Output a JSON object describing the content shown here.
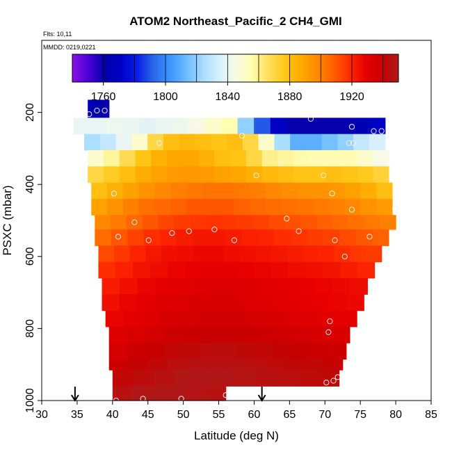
{
  "chart_data": {
    "type": "heatmap",
    "title": "ATOM2 Northeast_Pacific_2 CH4_GMI",
    "subtitle_flights": "Flts: 10,11",
    "subtitle_dates": "MMDD: 0219,0221",
    "xlabel": "Latitude (deg N)",
    "ylabel": "PSXC (mbar)",
    "xlim": [
      30,
      85
    ],
    "ylim": [
      1000,
      0
    ],
    "x_ticks": [
      "30",
      "35",
      "40",
      "45",
      "50",
      "55",
      "60",
      "65",
      "70",
      "75",
      "80",
      "85"
    ],
    "y_ticks": [
      "200",
      "400",
      "600",
      "800",
      "1000"
    ],
    "colorbar": {
      "range": [
        1740,
        1950
      ],
      "tick_values": [
        1760,
        1800,
        1840,
        1880,
        1920
      ],
      "tick_labels": [
        "1760",
        "1800",
        "1840",
        "1880",
        "1920"
      ],
      "colors": [
        "#8b10e6",
        "#4b00d6",
        "#0000a8",
        "#0000c8",
        "#0b1ee8",
        "#2a6ae8",
        "#3c95ff",
        "#6cbcff",
        "#a8dcff",
        "#d6f0ff",
        "#f8fae6",
        "#fffcb0",
        "#ffe060",
        "#ffc81a",
        "#ffaa00",
        "#ff8a00",
        "#ff6000",
        "#ff2a00",
        "#e80000",
        "#c80000",
        "#ad1c1c"
      ]
    },
    "arrows_at_latitude": [
      34.7,
      61.1
    ],
    "layers": [
      {
        "p_top": 165,
        "p_bot": 215,
        "lat_min": 36.5,
        "lat_max": 39.5,
        "values": [
          1765,
          1762,
          1760
        ]
      },
      {
        "p_top": 215,
        "p_bot": 260,
        "lat_min": 34.5,
        "lat_max": 78.5,
        "values": [
          1840,
          1840,
          1842,
          1840,
          1838,
          1840,
          1842,
          1845,
          1850,
          1855,
          1820,
          1790,
          1770,
          1760,
          1760,
          1760,
          1760,
          1765,
          1770
        ]
      },
      {
        "p_top": 260,
        "p_bot": 305,
        "lat_min": 36,
        "lat_max": 78.5,
        "values": [
          1825,
          1830,
          1840,
          1850,
          1870,
          1880,
          1882,
          1880,
          1878,
          1880,
          1870,
          1850,
          1825,
          1810,
          1810,
          1815,
          1820,
          1830,
          1835
        ]
      },
      {
        "p_top": 305,
        "p_bot": 350,
        "lat_min": 36.5,
        "lat_max": 79,
        "values": [
          1850,
          1858,
          1868,
          1878,
          1885,
          1888,
          1888,
          1885,
          1880,
          1878,
          1870,
          1860,
          1858,
          1856,
          1855,
          1855,
          1855,
          1850,
          1845
        ]
      },
      {
        "p_top": 350,
        "p_bot": 395,
        "lat_min": 36.5,
        "lat_max": 79,
        "values": [
          1870,
          1875,
          1880,
          1886,
          1890,
          1892,
          1893,
          1892,
          1890,
          1888,
          1885,
          1882,
          1880,
          1878,
          1878,
          1880,
          1878,
          1876,
          1872
        ]
      },
      {
        "p_top": 395,
        "p_bot": 440,
        "lat_min": 37,
        "lat_max": 79.5,
        "values": [
          1880,
          1885,
          1890,
          1895,
          1898,
          1900,
          1902,
          1903,
          1903,
          1902,
          1900,
          1898,
          1896,
          1895,
          1895,
          1893,
          1890,
          1886,
          1880
        ]
      },
      {
        "p_top": 440,
        "p_bot": 485,
        "lat_min": 37,
        "lat_max": 79.5,
        "values": [
          1890,
          1895,
          1900,
          1904,
          1906,
          1908,
          1910,
          1910,
          1910,
          1908,
          1906,
          1905,
          1904,
          1903,
          1902,
          1900,
          1898,
          1895,
          1892
        ]
      },
      {
        "p_top": 485,
        "p_bot": 525,
        "lat_min": 37.5,
        "lat_max": 80,
        "values": [
          1898,
          1902,
          1906,
          1910,
          1913,
          1915,
          1916,
          1917,
          1916,
          1915,
          1914,
          1912,
          1911,
          1910,
          1908,
          1906,
          1904,
          1902,
          1900
        ]
      },
      {
        "p_top": 525,
        "p_bot": 570,
        "lat_min": 37.5,
        "lat_max": 79,
        "values": [
          1905,
          1910,
          1914,
          1918,
          1920,
          1922,
          1923,
          1923,
          1922,
          1921,
          1920,
          1918,
          1917,
          1915,
          1914,
          1912,
          1910,
          1908
        ]
      },
      {
        "p_top": 570,
        "p_bot": 615,
        "lat_min": 38,
        "lat_max": 78,
        "values": [
          1912,
          1916,
          1920,
          1923,
          1925,
          1926,
          1927,
          1927,
          1926,
          1925,
          1924,
          1923,
          1922,
          1921,
          1920,
          1918,
          1916,
          1915
        ]
      },
      {
        "p_top": 615,
        "p_bot": 660,
        "lat_min": 38,
        "lat_max": 77,
        "values": [
          1918,
          1921,
          1924,
          1926,
          1928,
          1929,
          1930,
          1930,
          1929,
          1928,
          1927,
          1926,
          1925,
          1924,
          1922,
          1920
        ]
      },
      {
        "p_top": 660,
        "p_bot": 705,
        "lat_min": 38.5,
        "lat_max": 76,
        "values": [
          1922,
          1925,
          1928,
          1930,
          1931,
          1932,
          1933,
          1933,
          1932,
          1931,
          1930,
          1929,
          1928,
          1927,
          1926
        ]
      },
      {
        "p_top": 705,
        "p_bot": 750,
        "lat_min": 38.5,
        "lat_max": 75.5,
        "values": [
          1925,
          1928,
          1930,
          1932,
          1933,
          1934,
          1934,
          1934,
          1933,
          1932,
          1931,
          1930,
          1929,
          1928,
          1927
        ]
      },
      {
        "p_top": 750,
        "p_bot": 795,
        "lat_min": 39,
        "lat_max": 74.5,
        "values": [
          1928,
          1930,
          1932,
          1934,
          1935,
          1936,
          1936,
          1936,
          1935,
          1934,
          1933,
          1932,
          1931,
          1930
        ]
      },
      {
        "p_top": 795,
        "p_bot": 840,
        "lat_min": 39.5,
        "lat_max": 73.5,
        "values": [
          1932,
          1934,
          1936,
          1938,
          1939,
          1940,
          1940,
          1939,
          1938,
          1937,
          1936,
          1935,
          1934
        ]
      },
      {
        "p_top": 840,
        "p_bot": 885,
        "lat_min": 39.5,
        "lat_max": 73,
        "values": [
          1935,
          1938,
          1940,
          1942,
          1943,
          1944,
          1944,
          1943,
          1942,
          1941,
          1940,
          1939,
          1938
        ]
      },
      {
        "p_top": 885,
        "p_bot": 915,
        "lat_min": 39.5,
        "lat_max": 72.5,
        "values": [
          1938,
          1941,
          1943,
          1945,
          1946,
          1946,
          1946,
          1945,
          1944,
          1943,
          1942,
          1941
        ]
      },
      {
        "p_top": 915,
        "p_bot": 960,
        "lat_min": 40,
        "lat_max": 72,
        "values": [
          1942,
          1944,
          1946,
          1948,
          1948,
          1948,
          1947,
          1946,
          1945,
          1944,
          1943
        ]
      },
      {
        "p_top": 960,
        "p_bot": 1000,
        "lat_min": 40,
        "lat_max": 56,
        "values": [
          1946,
          1948,
          1948,
          1948,
          1947,
          1946
        ]
      }
    ],
    "sample_points": [
      {
        "lat": 35.2,
        "p": 235
      },
      {
        "lat": 36.7,
        "p": 205
      },
      {
        "lat": 37.8,
        "p": 195
      },
      {
        "lat": 38.9,
        "p": 195
      },
      {
        "lat": 51.2,
        "p": 240
      },
      {
        "lat": 58.3,
        "p": 265
      },
      {
        "lat": 68.0,
        "p": 218
      },
      {
        "lat": 73.8,
        "p": 240
      },
      {
        "lat": 76.9,
        "p": 252
      },
      {
        "lat": 78.0,
        "p": 252
      },
      {
        "lat": 41.4,
        "p": 275
      },
      {
        "lat": 46.6,
        "p": 285
      },
      {
        "lat": 73.4,
        "p": 285
      },
      {
        "lat": 74.0,
        "p": 285
      },
      {
        "lat": 63.7,
        "p": 340
      },
      {
        "lat": 60.3,
        "p": 375
      },
      {
        "lat": 69.8,
        "p": 375
      },
      {
        "lat": 40.2,
        "p": 425
      },
      {
        "lat": 71.0,
        "p": 425
      },
      {
        "lat": 73.8,
        "p": 470
      },
      {
        "lat": 79.9,
        "p": 468
      },
      {
        "lat": 43.1,
        "p": 505
      },
      {
        "lat": 64.6,
        "p": 495
      },
      {
        "lat": 40.8,
        "p": 545
      },
      {
        "lat": 45.1,
        "p": 555
      },
      {
        "lat": 48.4,
        "p": 535
      },
      {
        "lat": 50.8,
        "p": 530
      },
      {
        "lat": 54.4,
        "p": 525
      },
      {
        "lat": 57.2,
        "p": 555
      },
      {
        "lat": 66.3,
        "p": 530
      },
      {
        "lat": 71.4,
        "p": 555
      },
      {
        "lat": 76.3,
        "p": 545
      },
      {
        "lat": 72.8,
        "p": 600
      },
      {
        "lat": 70.7,
        "p": 780
      },
      {
        "lat": 70.5,
        "p": 810
      },
      {
        "lat": 70.2,
        "p": 950
      },
      {
        "lat": 71.2,
        "p": 945
      },
      {
        "lat": 71.8,
        "p": 935
      },
      {
        "lat": 56.0,
        "p": 985
      },
      {
        "lat": 40.5,
        "p": 1000
      },
      {
        "lat": 44.3,
        "p": 995
      },
      {
        "lat": 49.7,
        "p": 995
      }
    ]
  }
}
